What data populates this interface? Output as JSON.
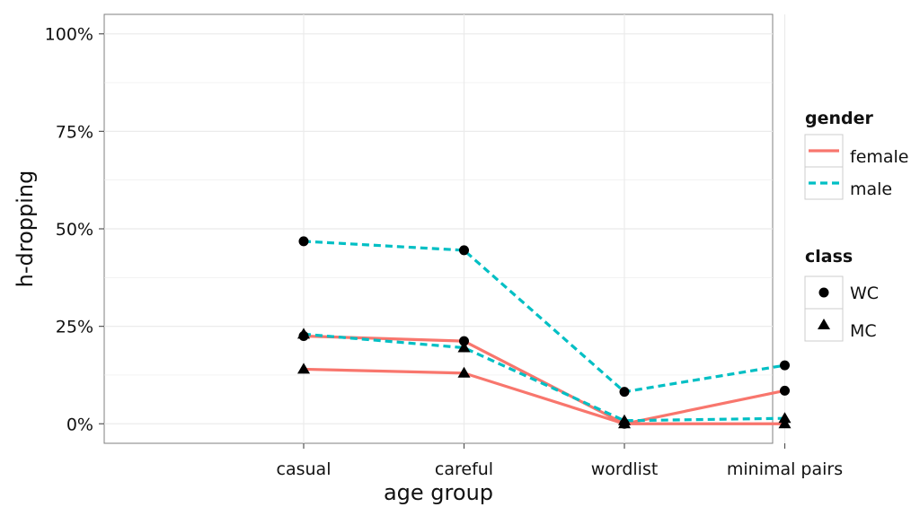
{
  "chart_data": {
    "type": "line",
    "xlabel": "age group",
    "ylabel": "h-dropping",
    "categories": [
      "casual",
      "careful",
      "wordlist",
      "minimal pairs"
    ],
    "yticks": [
      "0%",
      "25%",
      "50%",
      "75%",
      "100%"
    ],
    "ylim": [
      -0.05,
      1.05
    ],
    "grid": true,
    "legend_placement": "right",
    "colors": {
      "female": "#F8766D",
      "male": "#00BFC4",
      "points": "#000000",
      "grid": "#EBEBEB",
      "frame": "#7F7F7F"
    },
    "series": [
      {
        "gender": "female",
        "class": "WC",
        "values": [
          0.225,
          0.212,
          0.0,
          0.085
        ]
      },
      {
        "gender": "female",
        "class": "MC",
        "values": [
          0.14,
          0.13,
          0.0,
          0.0
        ]
      },
      {
        "gender": "male",
        "class": "WC",
        "values": [
          0.468,
          0.445,
          0.082,
          0.15
        ]
      },
      {
        "gender": "male",
        "class": "MC",
        "values": [
          0.23,
          0.195,
          0.008,
          0.014
        ]
      }
    ],
    "legend": {
      "gender": {
        "title": "gender",
        "items": [
          {
            "label": "female",
            "line": "solid"
          },
          {
            "label": "male",
            "line": "dashed"
          }
        ]
      },
      "class": {
        "title": "class",
        "items": [
          {
            "label": "WC",
            "shape": "circle"
          },
          {
            "label": "MC",
            "shape": "triangle"
          }
        ]
      }
    }
  }
}
